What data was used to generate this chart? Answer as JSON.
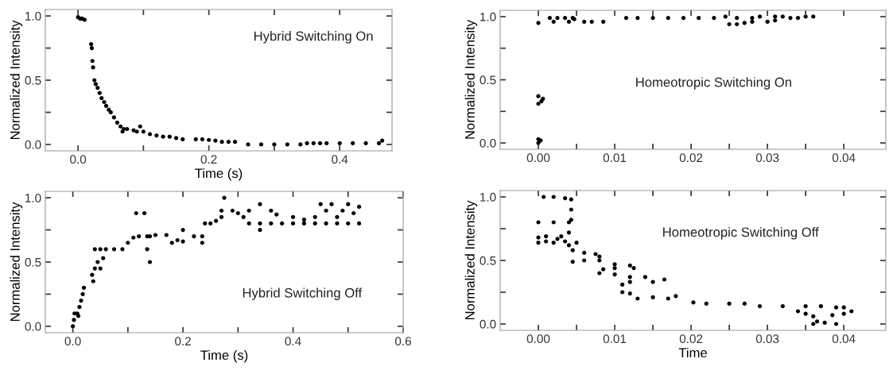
{
  "chart_data": [
    {
      "type": "scatter",
      "xlabel": "Time (s)",
      "ylabel": "Normalized Intensity",
      "annotations": [
        "Hybrid Switching On"
      ],
      "marker": "circle",
      "grid": false,
      "legend": false,
      "xlim": [
        -0.05,
        0.48
      ],
      "xticks": [
        {
          "value": 0,
          "label": "0.0"
        },
        {
          "value": 0.1,
          "label": null
        },
        0.2,
        {
          "value": 0.3,
          "label": null
        },
        0.4
      ],
      "ylim": [
        -0.05,
        1.05
      ],
      "yticks": [
        {
          "value": 0,
          "label": "0.0"
        },
        {
          "value": 0.25,
          "label": null
        },
        {
          "value": 0.5,
          "label": "0.5"
        },
        {
          "value": 0.75,
          "label": null
        },
        {
          "value": 1,
          "label": "1.0"
        }
      ],
      "series": [
        {
          "color": "#000000",
          "x": [
            0.0,
            0.003,
            0.006,
            0.01,
            0.02,
            0.021,
            0.022,
            0.023,
            0.025,
            0.027,
            0.03,
            0.033,
            0.036,
            0.04,
            0.043,
            0.047,
            0.05,
            0.055,
            0.06,
            0.065,
            0.068,
            0.07,
            0.075,
            0.085,
            0.09,
            0.095,
            0.1,
            0.11,
            0.12,
            0.13,
            0.14,
            0.15,
            0.16,
            0.18,
            0.19,
            0.2,
            0.21,
            0.22,
            0.23,
            0.24,
            0.26,
            0.28,
            0.3,
            0.32,
            0.34,
            0.35,
            0.36,
            0.37,
            0.38,
            0.4,
            0.42,
            0.44,
            0.46,
            0.465
          ],
          "values": [
            0.99,
            0.98,
            0.98,
            0.97,
            0.78,
            0.75,
            0.65,
            0.6,
            0.5,
            0.47,
            0.44,
            0.4,
            0.36,
            0.33,
            0.3,
            0.27,
            0.25,
            0.21,
            0.17,
            0.14,
            0.1,
            0.12,
            0.12,
            0.11,
            0.1,
            0.14,
            0.1,
            0.08,
            0.07,
            0.06,
            0.06,
            0.05,
            0.04,
            0.04,
            0.04,
            0.035,
            0.03,
            0.02,
            0.02,
            0.02,
            0.0,
            0.0,
            0.0,
            0.0,
            0.0,
            0.01,
            0.01,
            0.01,
            0.01,
            0.01,
            0.01,
            0.01,
            0.01,
            0.03
          ]
        }
      ]
    },
    {
      "type": "scatter",
      "xlabel": "Time (s)",
      "ylabel": "Normalized Intensity",
      "annotations": [
        "Hybrid Switching Off"
      ],
      "marker": "circle",
      "grid": false,
      "legend": false,
      "xlim": [
        -0.05,
        0.6
      ],
      "xticks": [
        {
          "value": 0,
          "label": "0.0"
        },
        {
          "value": 0.1,
          "label": null
        },
        0.2,
        {
          "value": 0.3,
          "label": null
        },
        0.4,
        {
          "value": 0.5,
          "label": null
        },
        0.6
      ],
      "ylim": [
        -0.05,
        1.05
      ],
      "yticks": [
        {
          "value": 0,
          "label": "0.0"
        },
        {
          "value": 0.25,
          "label": null
        },
        {
          "value": 0.5,
          "label": "0.5"
        },
        {
          "value": 0.75,
          "label": null
        },
        {
          "value": 1,
          "label": "1.0"
        }
      ],
      "series": [
        {
          "color": "#000000",
          "x": [
            0.0,
            0.002,
            0.003,
            0.008,
            0.01,
            0.012,
            0.015,
            0.018,
            0.02,
            0.035,
            0.037,
            0.04,
            0.045,
            0.05,
            0.055,
            0.04,
            0.05,
            0.06,
            0.075,
            0.09,
            0.1,
            0.11,
            0.12,
            0.115,
            0.13,
            0.135,
            0.14,
            0.135,
            0.14,
            0.15,
            0.17,
            0.18,
            0.19,
            0.2,
            0.2,
            0.22,
            0.235,
            0.235,
            0.24,
            0.25,
            0.26,
            0.27,
            0.27,
            0.275,
            0.29,
            0.3,
            0.31,
            0.32,
            0.32,
            0.34,
            0.34,
            0.34,
            0.36,
            0.36,
            0.37,
            0.38,
            0.4,
            0.4,
            0.42,
            0.42,
            0.44,
            0.44,
            0.45,
            0.46,
            0.46,
            0.47,
            0.48,
            0.48,
            0.49,
            0.5,
            0.5,
            0.51,
            0.52,
            0.52
          ],
          "values": [
            0.0,
            0.05,
            0.1,
            0.1,
            0.08,
            0.15,
            0.2,
            0.25,
            0.3,
            0.4,
            0.35,
            0.45,
            0.5,
            0.45,
            0.53,
            0.6,
            0.6,
            0.6,
            0.6,
            0.6,
            0.65,
            0.69,
            0.7,
            0.88,
            0.88,
            0.7,
            0.7,
            0.6,
            0.5,
            0.71,
            0.71,
            0.65,
            0.67,
            0.66,
            0.75,
            0.7,
            0.7,
            0.65,
            0.8,
            0.8,
            0.82,
            0.85,
            0.9,
            1.0,
            0.9,
            0.88,
            0.85,
            0.9,
            0.8,
            0.8,
            0.75,
            0.95,
            0.8,
            0.9,
            0.87,
            0.8,
            0.8,
            0.85,
            0.8,
            0.83,
            0.8,
            0.85,
            0.95,
            0.8,
            0.9,
            0.95,
            0.8,
            0.85,
            0.9,
            0.8,
            0.95,
            0.88,
            0.8,
            0.93
          ]
        }
      ]
    },
    {
      "type": "scatter",
      "ylabel": "Normalized Intensity",
      "annotations": [
        "Homeotropic Switching On"
      ],
      "marker": "circle",
      "grid": false,
      "legend": false,
      "xlim": [
        -0.005,
        0.0455
      ],
      "xticks": [
        {
          "value": 0.0,
          "label": "0.00"
        },
        {
          "value": 0.005,
          "label": null
        },
        0.01,
        {
          "value": 0.015,
          "label": null
        },
        0.02,
        {
          "value": 0.025,
          "label": null
        },
        0.03,
        {
          "value": 0.035,
          "label": null
        },
        0.04
      ],
      "ylim": [
        -0.05,
        1.05
      ],
      "yticks": [
        {
          "value": 0,
          "label": "0.0"
        },
        {
          "value": 0.25,
          "label": null
        },
        {
          "value": 0.5,
          "label": "0.5"
        },
        {
          "value": 0.75,
          "label": null
        },
        {
          "value": 1,
          "label": "1.0"
        }
      ],
      "series": [
        {
          "color": "#000000",
          "x": [
            0.0,
            0.0,
            0.0003,
            0.0,
            0.0,
            0.0004,
            0.0006,
            0.0,
            0.0015,
            0.002,
            0.0025,
            0.0035,
            0.004,
            0.0045,
            0.0047,
            0.006,
            0.007,
            0.0085,
            0.0115,
            0.013,
            0.015,
            0.017,
            0.019,
            0.021,
            0.023,
            0.0245,
            0.025,
            0.026,
            0.026,
            0.027,
            0.028,
            0.028,
            0.029,
            0.03,
            0.031,
            0.031,
            0.032,
            0.033,
            0.034,
            0.035,
            0.036
          ],
          "values": [
            0.0,
            0.03,
            0.02,
            0.31,
            0.37,
            0.33,
            0.35,
            0.95,
            0.99,
            0.96,
            0.99,
            0.99,
            0.96,
            0.99,
            0.98,
            0.96,
            0.96,
            0.96,
            0.99,
            0.99,
            0.99,
            0.99,
            0.99,
            0.99,
            0.99,
            1.0,
            0.94,
            0.99,
            0.94,
            0.95,
            0.99,
            0.96,
            1.0,
            0.96,
            0.97,
            1.0,
            1.0,
            0.99,
            0.99,
            1.0,
            1.0
          ]
        }
      ]
    },
    {
      "type": "scatter",
      "xlabel": "Time",
      "ylabel": "Normalized Intensity",
      "annotations": [
        "Homeotropic Switching Off"
      ],
      "marker": "circle",
      "grid": false,
      "legend": false,
      "xlim": [
        -0.005,
        0.0455
      ],
      "xticks": [
        {
          "value": 0.0,
          "label": "0.00"
        },
        {
          "value": 0.005,
          "label": null
        },
        0.01,
        {
          "value": 0.015,
          "label": null
        },
        0.02,
        {
          "value": 0.025,
          "label": null
        },
        0.03,
        {
          "value": 0.035,
          "label": null
        },
        0.04
      ],
      "ylim": [
        -0.05,
        1.05
      ],
      "yticks": [
        {
          "value": 0,
          "label": "0.0"
        },
        {
          "value": 0.25,
          "label": null
        },
        {
          "value": 0.5,
          "label": "0.5"
        },
        {
          "value": 0.75,
          "label": null
        },
        {
          "value": 1,
          "label": "1.0"
        }
      ],
      "series": [
        {
          "color": "#000000",
          "x": [
            0.0007,
            0.002,
            0.0035,
            0.0043,
            0.0043,
            0.0043,
            0.004,
            0.002,
            0.0,
            0.0,
            0.001,
            0.003,
            0.0025,
            0.001,
            0.0,
            0.002,
            0.0035,
            0.004,
            0.004,
            0.005,
            0.0045,
            0.006,
            0.0075,
            0.008,
            0.0045,
            0.006,
            0.008,
            0.01,
            0.012,
            0.0125,
            0.01,
            0.0085,
            0.008,
            0.01,
            0.012,
            0.014,
            0.0165,
            0.015,
            0.012,
            0.011,
            0.011,
            0.012,
            0.013,
            0.015,
            0.017,
            0.018,
            0.0203,
            0.022,
            0.025,
            0.027,
            0.029,
            0.032,
            0.035,
            0.037,
            0.034,
            0.035,
            0.036,
            0.0365,
            0.036,
            0.0375,
            0.039,
            0.0385,
            0.04,
            0.041,
            0.039,
            0.04
          ],
          "values": [
            1.0,
            1.0,
            0.99,
            0.98,
            0.9,
            0.82,
            0.8,
            0.8,
            0.8,
            0.68,
            0.69,
            0.69,
            0.67,
            0.65,
            0.64,
            0.64,
            0.65,
            0.72,
            0.62,
            0.64,
            0.58,
            0.56,
            0.55,
            0.53,
            0.49,
            0.5,
            0.5,
            0.47,
            0.46,
            0.44,
            0.44,
            0.43,
            0.4,
            0.39,
            0.37,
            0.37,
            0.35,
            0.33,
            0.33,
            0.31,
            0.25,
            0.24,
            0.2,
            0.21,
            0.2,
            0.22,
            0.17,
            0.16,
            0.16,
            0.16,
            0.14,
            0.14,
            0.14,
            0.14,
            0.1,
            0.08,
            0.06,
            0.02,
            0.0,
            0.01,
            0.0,
            0.07,
            0.08,
            0.1,
            0.13,
            0.13
          ]
        }
      ]
    }
  ]
}
